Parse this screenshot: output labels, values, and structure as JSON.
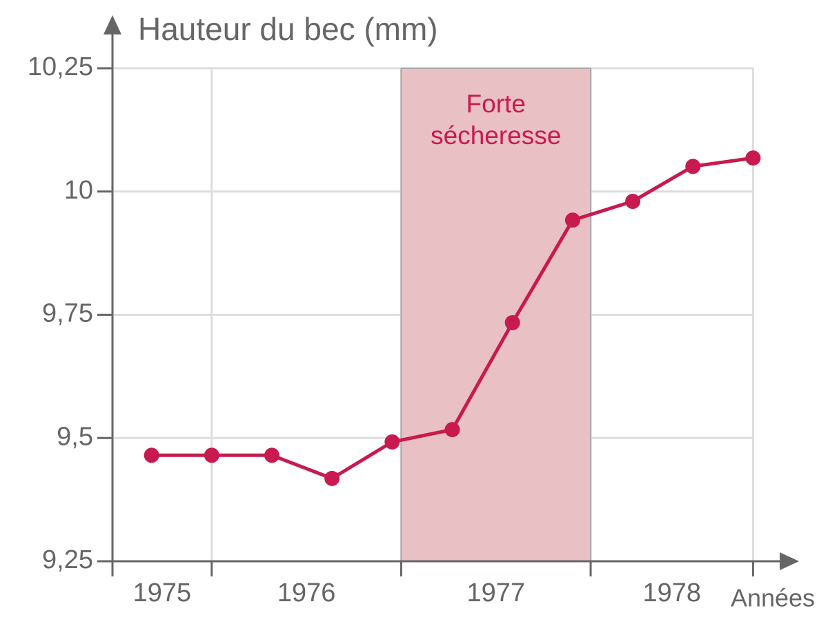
{
  "chart_data": {
    "type": "line",
    "title": "Hauteur du bec (mm)",
    "x_label": "Années",
    "categories": [
      null,
      null,
      null,
      null,
      null,
      null,
      null,
      null,
      null,
      null,
      null
    ],
    "series": [
      {
        "color": "#c81a4f",
        "values": [
          9.465,
          9.465,
          9.465,
          9.418,
          9.492,
          9.517,
          9.734,
          9.942,
          9.98,
          10.051,
          10.068
        ]
      }
    ],
    "xlim": [
      -0.65,
      10.5
    ],
    "periods": [
      {
        "label": "1975",
        "start": -0.65,
        "end": 1
      },
      {
        "label": "1976",
        "start": 1,
        "end": 4.15
      },
      {
        "label": "1977",
        "start": 4.15,
        "end": 7.3
      },
      {
        "label": "1978",
        "start": 7.3,
        "end": 10
      }
    ],
    "drought": {
      "label": "Forte sécheresse",
      "start": 4.15,
      "end": 7.3,
      "color": "#e9c0c4"
    },
    "ylim": [
      9.25,
      10.25
    ],
    "yticks": [
      {
        "value": 9.25,
        "label": "9,25"
      },
      {
        "value": 9.5,
        "label": "9,5"
      },
      {
        "value": 9.75,
        "label": "9,75"
      },
      10,
      {
        "value": 10.25,
        "label": "10,25"
      }
    ],
    "grid": true
  }
}
